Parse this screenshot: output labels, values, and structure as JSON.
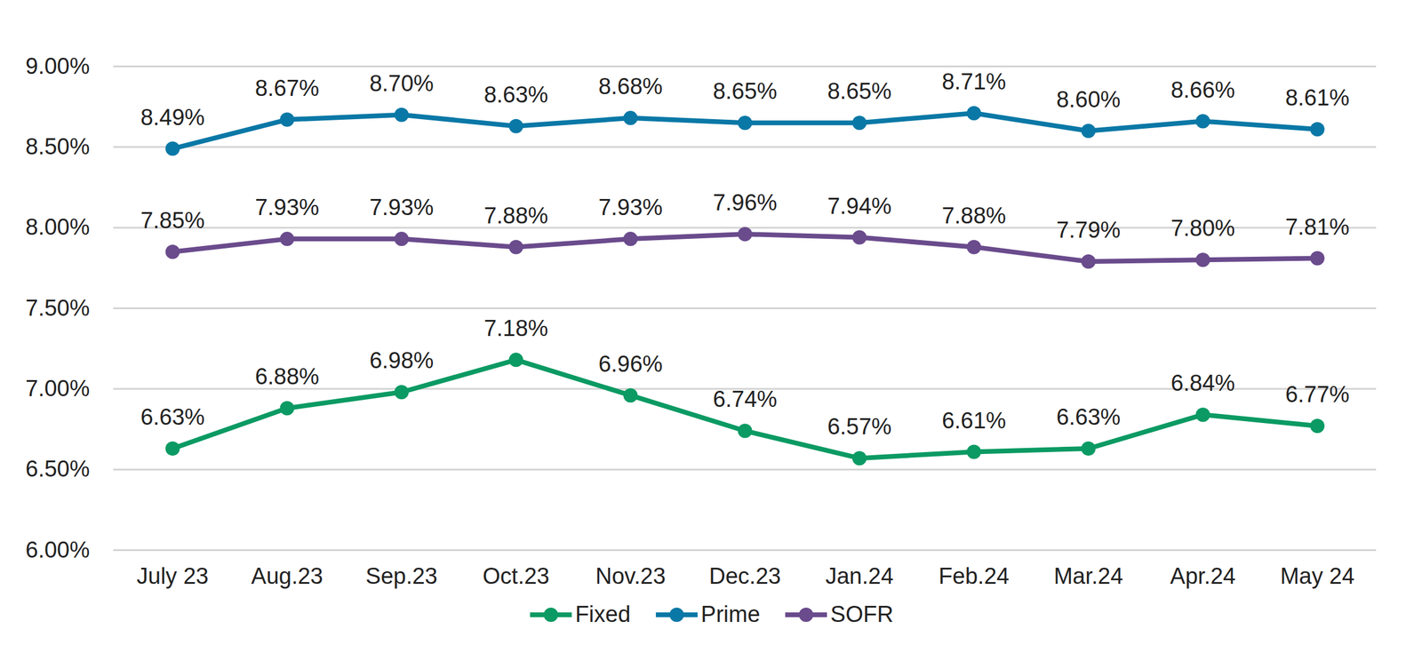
{
  "chart_data": {
    "type": "line",
    "categories": [
      "July 23",
      "Aug.23",
      "Sep.23",
      "Oct.23",
      "Nov.23",
      "Dec.23",
      "Jan.24",
      "Feb.24",
      "Mar.24",
      "Apr.24",
      "May 24"
    ],
    "series": [
      {
        "name": "Fixed",
        "color": "#0b9a63",
        "values": [
          6.63,
          6.88,
          6.98,
          7.18,
          6.96,
          6.74,
          6.57,
          6.61,
          6.63,
          6.84,
          6.77
        ],
        "value_labels": [
          "6.63%",
          "6.88%",
          "6.98%",
          "7.18%",
          "6.96%",
          "6.74%",
          "6.57%",
          "6.61%",
          "6.63%",
          "6.84%",
          "6.77%"
        ]
      },
      {
        "name": "Prime",
        "color": "#0a78a6",
        "values": [
          8.49,
          8.67,
          8.7,
          8.63,
          8.68,
          8.65,
          8.65,
          8.71,
          8.6,
          8.66,
          8.61
        ],
        "value_labels": [
          "8.49%",
          "8.67%",
          "8.70%",
          "8.63%",
          "8.68%",
          "8.65%",
          "8.65%",
          "8.71%",
          "8.60%",
          "8.66%",
          "8.61%"
        ]
      },
      {
        "name": "SOFR",
        "color": "#6a4b8c",
        "values": [
          7.85,
          7.93,
          7.93,
          7.88,
          7.93,
          7.96,
          7.94,
          7.88,
          7.79,
          7.8,
          7.81
        ],
        "value_labels": [
          "7.85%",
          "7.93%",
          "7.93%",
          "7.88%",
          "7.93%",
          "7.96%",
          "7.94%",
          "7.88%",
          "7.79%",
          "7.80%",
          "7.81%"
        ]
      }
    ],
    "ylim": [
      6,
      9
    ],
    "yticks": [
      {
        "value": 6,
        "label": "6.00%"
      },
      {
        "value": 6.5,
        "label": "6.50%"
      },
      {
        "value": 7,
        "label": "7.00%"
      },
      {
        "value": 7.5,
        "label": "7.50%"
      },
      {
        "value": 8,
        "label": "8.00%"
      },
      {
        "value": 8.5,
        "label": "8.50%"
      },
      {
        "value": 9,
        "label": "9.00%"
      }
    ],
    "grid": true,
    "data_labels": true,
    "legend": "bottom",
    "marker": "circle"
  }
}
